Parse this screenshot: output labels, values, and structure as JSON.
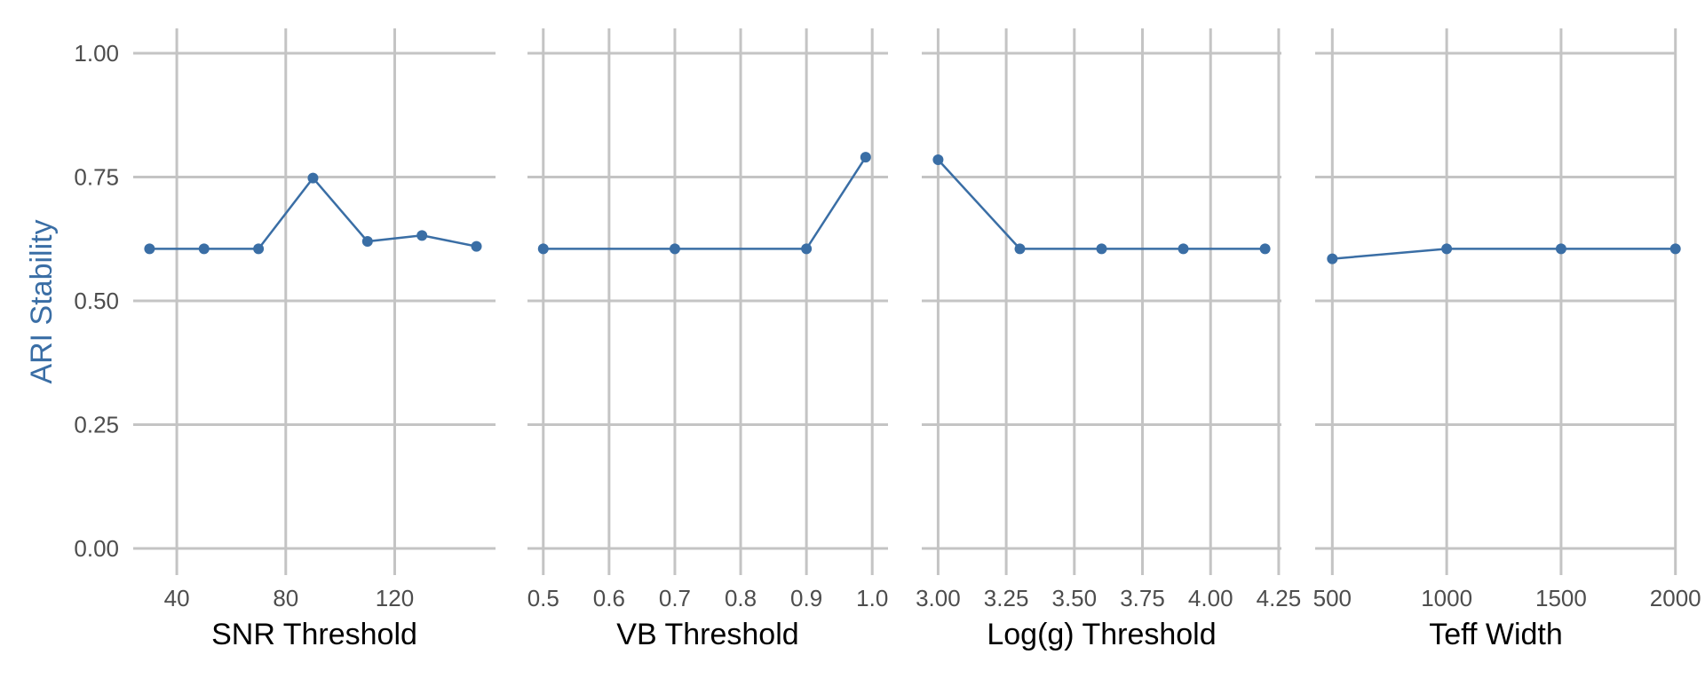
{
  "chart_data": {
    "type": "line",
    "ylabel": "ARI Stability",
    "ylim": [
      0,
      1
    ],
    "yticks": [
      0,
      0.25,
      0.5,
      0.75,
      1
    ],
    "ytick_labels": [
      "0.00",
      "0.25",
      "0.50",
      "0.75",
      "1.00"
    ],
    "grid": true,
    "colors": {
      "series": "#3a6ea5",
      "grid": "#c4c4c4",
      "ylabel": "#3a6ea5"
    },
    "panels": [
      {
        "xlabel": "SNR Threshold",
        "xlim": [
          24,
          157
        ],
        "xticks": [
          40,
          80,
          120
        ],
        "xtick_labels": [
          "40",
          "80",
          "120"
        ],
        "x": [
          30,
          50,
          70,
          90,
          110,
          130,
          150
        ],
        "y": [
          0.605,
          0.605,
          0.605,
          0.748,
          0.62,
          0.632,
          0.61
        ]
      },
      {
        "xlabel": "VB Threshold",
        "xlim": [
          0.476,
          1.024
        ],
        "xticks": [
          0.5,
          0.6,
          0.7,
          0.8,
          0.9,
          1.0
        ],
        "xtick_labels": [
          "0.5",
          "0.6",
          "0.7",
          "0.8",
          "0.9",
          "1.0"
        ],
        "x": [
          0.5,
          0.7,
          0.9,
          0.99
        ],
        "y": [
          0.605,
          0.605,
          0.605,
          0.79
        ]
      },
      {
        "xlabel": "Log(g) Threshold",
        "xlim": [
          2.94,
          4.26
        ],
        "xticks": [
          3.0,
          3.25,
          3.5,
          3.75,
          4.0,
          4.25
        ],
        "xtick_labels": [
          "3.00",
          "3.25",
          "3.50",
          "3.75",
          "4.00",
          "4.25"
        ],
        "x": [
          3.0,
          3.3,
          3.6,
          3.9,
          4.2
        ],
        "y": [
          0.785,
          0.605,
          0.605,
          0.605,
          0.605
        ]
      },
      {
        "xlabel": "Teff Width",
        "xlim": [
          425,
          2005
        ],
        "xticks": [
          500,
          1000,
          1500,
          2000
        ],
        "xtick_labels": [
          "500",
          "1000",
          "1500",
          "2000"
        ],
        "x": [
          500,
          1000,
          1500,
          2000
        ],
        "y": [
          0.585,
          0.605,
          0.605,
          0.605
        ]
      }
    ]
  }
}
